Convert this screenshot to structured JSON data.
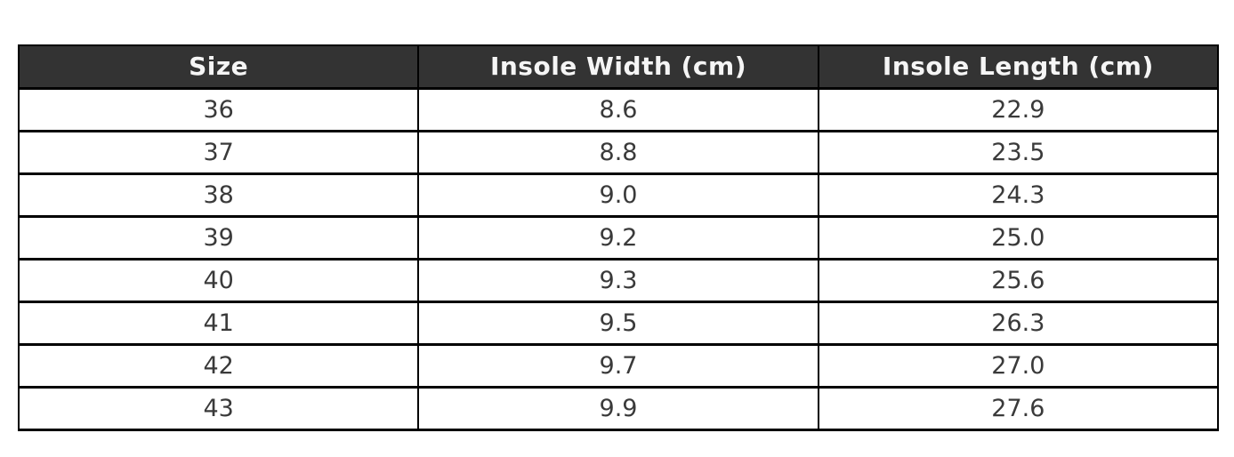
{
  "table": {
    "columns": [
      {
        "label": "Size"
      },
      {
        "label": "Insole Width (cm)"
      },
      {
        "label": "Insole Length (cm)"
      }
    ],
    "rows": [
      [
        "36",
        "8.6",
        "22.9"
      ],
      [
        "37",
        "8.8",
        "23.5"
      ],
      [
        "38",
        "9.0",
        "24.3"
      ],
      [
        "39",
        "9.2",
        "25.0"
      ],
      [
        "40",
        "9.3",
        "25.6"
      ],
      [
        "41",
        "9.5",
        "26.3"
      ],
      [
        "42",
        "9.7",
        "27.0"
      ],
      [
        "43",
        "9.9",
        "27.6"
      ]
    ]
  },
  "chart_data": {
    "type": "table",
    "title": "",
    "columns": [
      "Size",
      "Insole Width (cm)",
      "Insole Length (cm)"
    ],
    "sizes": [
      36,
      37,
      38,
      39,
      40,
      41,
      42,
      43
    ],
    "insole_width_cm": [
      8.6,
      8.8,
      9.0,
      9.2,
      9.3,
      9.5,
      9.7,
      9.9
    ],
    "insole_length_cm": [
      22.9,
      23.5,
      24.3,
      25.0,
      25.6,
      26.3,
      27.0,
      27.6
    ]
  },
  "colors": {
    "header_bg": "#333333",
    "header_text": "#f5f5f5",
    "border": "#000000",
    "cell_text": "#3a3a3a",
    "page_bg": "#ffffff"
  }
}
